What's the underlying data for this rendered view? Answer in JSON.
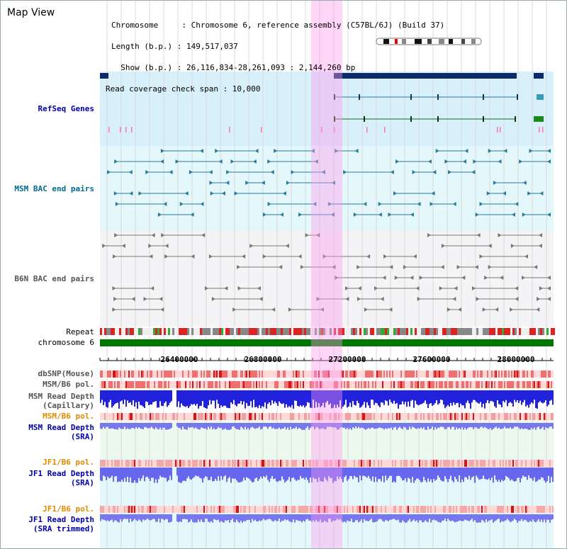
{
  "window": {
    "title": "Map View"
  },
  "header": {
    "chromosome": "Chromosome     : Chromosome 6, reference assembly (C57BL/6J) (Build 37)",
    "length": "Length (b.p.) : 149,517,037",
    "show": "  Show (b.p.) : 26,116,834-28,261,093 : 2,144,260 bp",
    "coverage": "Read coverage check span : 10,000"
  },
  "tracks": {
    "refseq": "RefSeq Genes",
    "msm_bac": "MSM BAC end pairs",
    "b6n_bac": "B6N BAC end pairs",
    "repeat": "Repeat",
    "chromosome": "chromosome 6",
    "dbsnp": "dbSNP(Mouse)",
    "msm_b6_pol": "MSM/B6 pol.",
    "msm_depth_cap_1": "MSM Read Depth",
    "msm_depth_cap_2": "(Capillary)",
    "msm_b6_pol_2": "MSM/B6 pol.",
    "msm_depth_sra_1": "MSM Read Depth",
    "msm_depth_sra_2": "(SRA)",
    "jf1_b6_pol": "JF1/B6 pol.",
    "jf1_depth_sra_1": "JF1 Read Depth",
    "jf1_depth_sra_2": "(SRA)",
    "jf1_b6_pol_2": "JF1/B6 pol.",
    "jf1_depth_trim_1": "JF1 Read Depth",
    "jf1_depth_trim_2": "(SRA trimmed)"
  },
  "axis": {
    "ticks": [
      "26400000",
      "26800000",
      "27200000",
      "27600000",
      "28000000"
    ]
  },
  "colors": {
    "refseq_label": "#0000aa",
    "msm_bac_label": "#006b8f",
    "b6n_bac_label": "#555555",
    "orange_label": "#e08a00",
    "blue_label": "#0000aa",
    "highlight": "#ff99ee",
    "chromosome_bar": "#007700"
  }
}
